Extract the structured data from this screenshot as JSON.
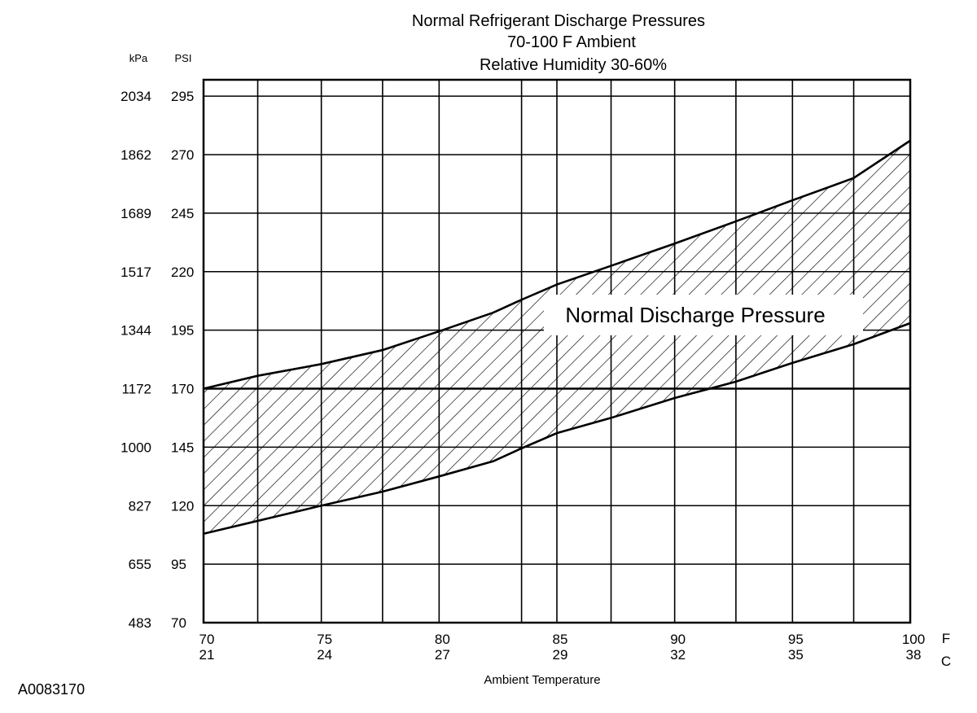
{
  "chart_data": {
    "type": "area",
    "title": [
      "Normal  Refrigerant  Discharge  Pressures",
      "70-100 F Ambient",
      "Relative Humidity 30-60%"
    ],
    "xlabel": "Ambient Temperature",
    "x_unit_primary": "F",
    "x_unit_secondary": "C",
    "x_ticks": [
      {
        "f": "70",
        "c": "21",
        "value": 70
      },
      {
        "f": "75",
        "c": "24",
        "value": 75
      },
      {
        "f": "80",
        "c": "27",
        "value": 80
      },
      {
        "f": "85",
        "c": "29",
        "value": 85
      },
      {
        "f": "90",
        "c": "32",
        "value": 90
      },
      {
        "f": "95",
        "c": "35",
        "value": 95
      },
      {
        "f": "100",
        "c": "38",
        "value": 100
      }
    ],
    "x_gridlines_f": [
      70,
      72.3,
      75,
      77.6,
      80,
      83.5,
      85,
      87.3,
      90,
      92.6,
      95,
      97.6,
      100
    ],
    "xlim": [
      70,
      100
    ],
    "y_unit_left": "kPa",
    "y_unit_right": "PSI",
    "y_ticks": [
      {
        "kpa": "2034",
        "psi": "295",
        "value": 295
      },
      {
        "kpa": "1862",
        "psi": "270",
        "value": 270
      },
      {
        "kpa": "1689",
        "psi": "245",
        "value": 245
      },
      {
        "kpa": "1517",
        "psi": "220",
        "value": 220
      },
      {
        "kpa": "1344",
        "psi": "195",
        "value": 195
      },
      {
        "kpa": "1172",
        "psi": "170",
        "value": 170
      },
      {
        "kpa": "1000",
        "psi": "145",
        "value": 145
      },
      {
        "kpa": "827",
        "psi": "120",
        "value": 120
      },
      {
        "kpa": "655",
        "psi": "95",
        "value": 95
      },
      {
        "kpa": "483",
        "psi": "70",
        "value": 70
      }
    ],
    "ylim": [
      70,
      302
    ],
    "reference_line_psi": 170,
    "band_label": "Normal Discharge Pressure",
    "series": [
      {
        "role": "upper",
        "x": [
          70,
          72.3,
          75,
          77.6,
          80,
          82.3,
          83.5,
          85,
          87.3,
          90,
          92.6,
          95,
          97.6,
          100
        ],
        "y": [
          170,
          175.5,
          180.5,
          186.5,
          194.5,
          202.5,
          208,
          214.5,
          222.5,
          232,
          241.5,
          250.5,
          260,
          276
        ]
      },
      {
        "role": "lower",
        "x": [
          70,
          72.3,
          75,
          77.6,
          80,
          82.3,
          83.5,
          85,
          87.3,
          90,
          92.6,
          95,
          97.6,
          100
        ],
        "y": [
          108,
          113.5,
          120,
          126,
          132.5,
          139,
          144.5,
          151,
          157.5,
          166,
          173,
          181,
          189,
          198
        ]
      }
    ],
    "hatch": "diagonal",
    "grid": true
  },
  "figure_id": "A0083170"
}
